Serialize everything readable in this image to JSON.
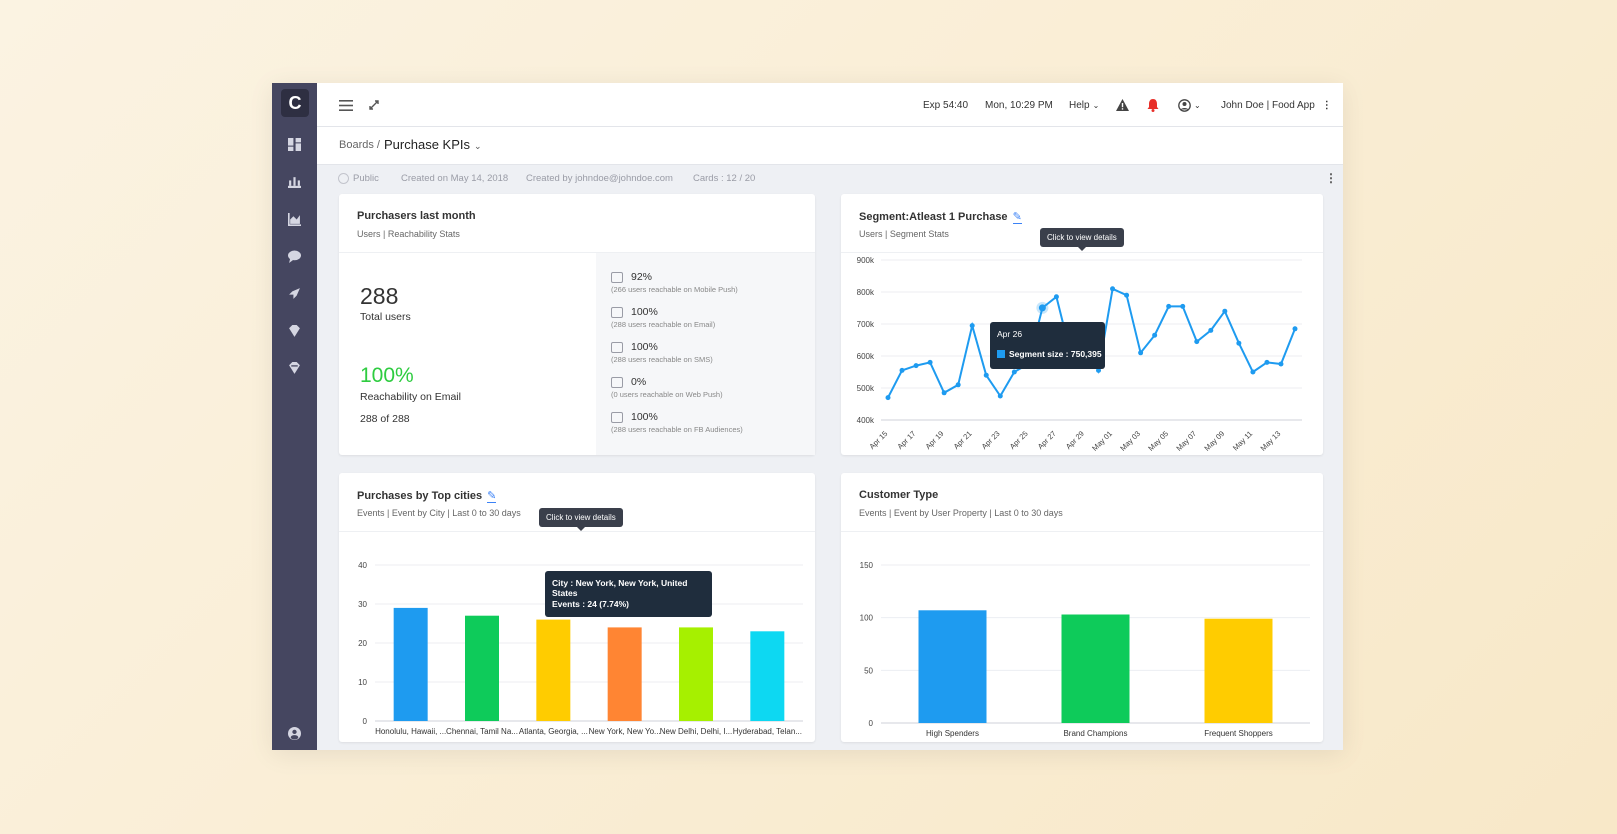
{
  "sidebar": {
    "logo": "C",
    "items": [
      "dashboard-icon",
      "segments-icon",
      "analytics-icon",
      "messages-icon",
      "campaigns-icon",
      "badge-icon",
      "badge-alt-icon"
    ],
    "footer_icon": "account-icon"
  },
  "topbar": {
    "exp": "Exp 54:40",
    "datetime": "Mon, 10:29 PM",
    "help": "Help",
    "user": "John Doe | Food App"
  },
  "breadcrumb": {
    "parent": "Boards /",
    "current": "Purchase KPIs"
  },
  "meta": {
    "visibility": "Public",
    "created_on": "Created on May 14, 2018",
    "created_by": "Created by johndoe@johndoe.com",
    "cards": "Cards : 12 / 20"
  },
  "card1": {
    "title": "Purchasers last month",
    "subtitle": "Users | Reachability Stats",
    "total": "288",
    "total_label": "Total users",
    "reach_pct": "100%",
    "reach_label": "Reachability on Email",
    "reach_count": "288 of 288",
    "channels": [
      {
        "value": "92%",
        "desc": "(266 users reachable on Mobile Push)",
        "icon": "mobile-push-icon"
      },
      {
        "value": "100%",
        "desc": "(288 users reachable on Email)",
        "icon": "email-icon"
      },
      {
        "value": "100%",
        "desc": "(288 users reachable on SMS)",
        "icon": "sms-icon"
      },
      {
        "value": "0%",
        "desc": "(0 users reachable on Web Push)",
        "icon": "web-push-icon"
      },
      {
        "value": "100%",
        "desc": "(288 users reachable on FB Audiences)",
        "icon": "facebook-icon"
      }
    ]
  },
  "card2": {
    "title": "Segment:Atleast 1 Purchase",
    "subtitle": "Users | Segment Stats",
    "tooltip_hint": "Click to view details",
    "tooltip_date": "Apr 26",
    "tooltip_value": "Segment size : 750,395"
  },
  "card3": {
    "title": "Purchases by Top cities",
    "subtitle": "Events | Event by City | Last 0 to 30 days",
    "tooltip_hint": "Click to view details",
    "tooltip_city": "City : New York, New York, United States",
    "tooltip_events": "Events : 24 (7.74%)"
  },
  "card4": {
    "title": "Customer Type",
    "subtitle": "Events | Event by User Property | Last 0 to 30 days"
  },
  "chart_data": [
    {
      "type": "line",
      "ylim": [
        400000,
        900000
      ],
      "yticks": [
        "400k",
        "500k",
        "600k",
        "700k",
        "800k",
        "900k"
      ],
      "xticks": [
        "Apr 15",
        "Apr 17",
        "Apr 19",
        "Apr 21",
        "Apr 23",
        "Apr 25",
        "Apr 27",
        "Apr 29",
        "May 01",
        "May 03",
        "May 05",
        "May 07",
        "May 09",
        "May 11",
        "May 13"
      ],
      "values": [
        470000,
        555000,
        570000,
        580000,
        485000,
        510000,
        695000,
        540000,
        475000,
        550000,
        575000,
        750395,
        785000,
        610000,
        665000,
        555000,
        810000,
        790000,
        610000,
        665000,
        755000,
        755000,
        645000,
        680000,
        740000,
        640000,
        550000,
        580000,
        575000,
        685000
      ],
      "color": "#1e9bf0",
      "highlight_index": 11
    },
    {
      "type": "bar",
      "ylim": [
        0,
        40
      ],
      "yticks": [
        "0",
        "10",
        "20",
        "30",
        "40"
      ],
      "categories": [
        "Honolulu, Hawaii, ...",
        "Chennai, Tamil Na...",
        "Atlanta, Georgia, ...",
        "New York, New Yo...",
        "New Delhi, Delhi, I...",
        "Hyderabad, Telan..."
      ],
      "values": [
        29,
        27,
        26,
        24,
        24,
        23
      ],
      "colors": [
        "#1e9bf0",
        "#0ecb5a",
        "#ffcc00",
        "#ff8533",
        "#a6f000",
        "#0dd8f2"
      ]
    },
    {
      "type": "bar",
      "ylim": [
        0,
        150
      ],
      "yticks": [
        "0",
        "50",
        "100",
        "150"
      ],
      "categories": [
        "High Spenders",
        "Brand Champions",
        "Frequent Shoppers"
      ],
      "values": [
        107,
        103,
        99
      ],
      "colors": [
        "#1e9bf0",
        "#0ecb5a",
        "#ffcc00"
      ]
    }
  ]
}
